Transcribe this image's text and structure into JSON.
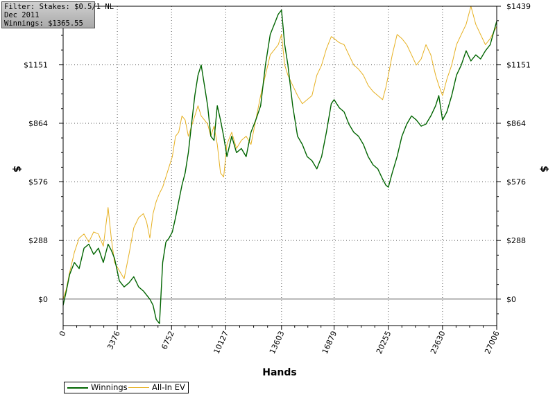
{
  "filter_box": {
    "filter": "Filter: Stakes: $0.5/1 NL",
    "period": "Dec 2011",
    "winnings": "Winnings: $1365.55"
  },
  "colors": {
    "winnings": "#006400",
    "allin_ev": "#e6b020",
    "grid": "#555555",
    "zero_line": "#555555"
  },
  "chart_data": {
    "type": "line",
    "title": "",
    "xlabel": "Hands",
    "ylabel": "$",
    "xlim": [
      0,
      27006
    ],
    "ylim": [
      -130,
      1439
    ],
    "x_ticks": [
      0,
      3376,
      6752,
      10127,
      13603,
      16879,
      20255,
      23630,
      27006
    ],
    "x_tick_labels": [
      "0",
      "3376",
      "6752",
      "10127",
      "13603",
      "16879",
      "20255",
      "23630",
      "27006"
    ],
    "y_ticks": [
      0,
      288,
      576,
      864,
      1151,
      1439
    ],
    "y_tick_labels_left": [
      "$0",
      "$288",
      "$576",
      "$864",
      "$1151",
      ""
    ],
    "y_tick_labels_right": [
      "$0",
      "$288",
      "$576",
      "$864",
      "$1151",
      "$1439"
    ],
    "grid": true,
    "legend_position": "bottom-left",
    "series": [
      {
        "name": "Winnings",
        "x": [
          0,
          200,
          400,
          700,
          1000,
          1300,
          1600,
          1900,
          2200,
          2500,
          2800,
          3000,
          3200,
          3500,
          3800,
          4100,
          4400,
          4700,
          5000,
          5200,
          5400,
          5600,
          5800,
          6000,
          6200,
          6400,
          6600,
          6800,
          7000,
          7200,
          7400,
          7600,
          7800,
          8000,
          8200,
          8400,
          8600,
          8800,
          9000,
          9200,
          9400,
          9600,
          9800,
          10000,
          10200,
          10500,
          10800,
          11100,
          11400,
          11700,
          12000,
          12300,
          12600,
          12900,
          13200,
          13400,
          13603,
          13800,
          14000,
          14300,
          14600,
          14900,
          15200,
          15500,
          15800,
          16100,
          16400,
          16700,
          16879,
          17200,
          17500,
          17800,
          18100,
          18400,
          18700,
          19000,
          19300,
          19600,
          19900,
          20100,
          20255,
          20500,
          20800,
          21100,
          21400,
          21700,
          22000,
          22300,
          22600,
          22900,
          23200,
          23400,
          23630,
          23900,
          24200,
          24500,
          24800,
          25100,
          25400,
          25700,
          26000,
          26300,
          26600,
          27006
        ],
        "values": [
          -30,
          40,
          120,
          180,
          150,
          250,
          270,
          220,
          250,
          180,
          270,
          240,
          200,
          90,
          60,
          80,
          110,
          60,
          40,
          20,
          0,
          -30,
          -100,
          -120,
          180,
          280,
          300,
          330,
          400,
          480,
          560,
          620,
          720,
          860,
          1000,
          1100,
          1150,
          1050,
          950,
          800,
          780,
          950,
          880,
          800,
          700,
          800,
          720,
          740,
          700,
          820,
          880,
          950,
          1150,
          1300,
          1360,
          1400,
          1420,
          1250,
          1150,
          950,
          800,
          760,
          700,
          680,
          640,
          700,
          820,
          960,
          980,
          940,
          920,
          860,
          820,
          800,
          760,
          700,
          660,
          640,
          590,
          560,
          550,
          620,
          700,
          800,
          860,
          900,
          880,
          850,
          860,
          900,
          950,
          1000,
          880,
          920,
          1000,
          1100,
          1150,
          1220,
          1170,
          1200,
          1180,
          1220,
          1250,
          1365.55
        ]
      },
      {
        "name": "All-In EV",
        "x": [
          0,
          200,
          400,
          700,
          1000,
          1300,
          1600,
          1900,
          2200,
          2500,
          2800,
          3000,
          3200,
          3500,
          3800,
          4100,
          4400,
          4700,
          5000,
          5200,
          5400,
          5600,
          5800,
          6000,
          6200,
          6400,
          6600,
          6800,
          7000,
          7200,
          7400,
          7600,
          7800,
          8000,
          8200,
          8400,
          8600,
          8800,
          9000,
          9200,
          9400,
          9600,
          9800,
          10000,
          10200,
          10500,
          10800,
          11100,
          11400,
          11700,
          12000,
          12300,
          12600,
          12900,
          13200,
          13400,
          13603,
          13800,
          14000,
          14300,
          14600,
          14900,
          15200,
          15500,
          15800,
          16100,
          16400,
          16700,
          16879,
          17200,
          17500,
          17800,
          18100,
          18400,
          18700,
          19000,
          19300,
          19600,
          19900,
          20100,
          20255,
          20500,
          20800,
          21100,
          21400,
          21700,
          22000,
          22300,
          22600,
          22900,
          23200,
          23400,
          23630,
          23900,
          24200,
          24500,
          24800,
          25100,
          25400,
          25700,
          26000,
          26300,
          26600,
          27006
        ],
        "values": [
          0,
          50,
          130,
          230,
          300,
          320,
          280,
          330,
          320,
          260,
          450,
          300,
          180,
          140,
          100,
          220,
          350,
          400,
          420,
          380,
          300,
          420,
          480,
          520,
          550,
          600,
          650,
          700,
          800,
          820,
          900,
          880,
          800,
          850,
          900,
          950,
          900,
          880,
          860,
          800,
          850,
          760,
          620,
          600,
          760,
          820,
          740,
          780,
          800,
          760,
          880,
          1000,
          1100,
          1200,
          1230,
          1250,
          1300,
          1150,
          1100,
          1050,
          1000,
          960,
          980,
          1000,
          1100,
          1150,
          1230,
          1290,
          1280,
          1260,
          1250,
          1200,
          1150,
          1130,
          1100,
          1050,
          1020,
          1000,
          980,
          1040,
          1100,
          1200,
          1300,
          1280,
          1250,
          1200,
          1150,
          1180,
          1250,
          1200,
          1100,
          1050,
          1000,
          1080,
          1150,
          1250,
          1300,
          1350,
          1439,
          1350,
          1300,
          1250,
          1280,
          1340
        ]
      }
    ]
  }
}
